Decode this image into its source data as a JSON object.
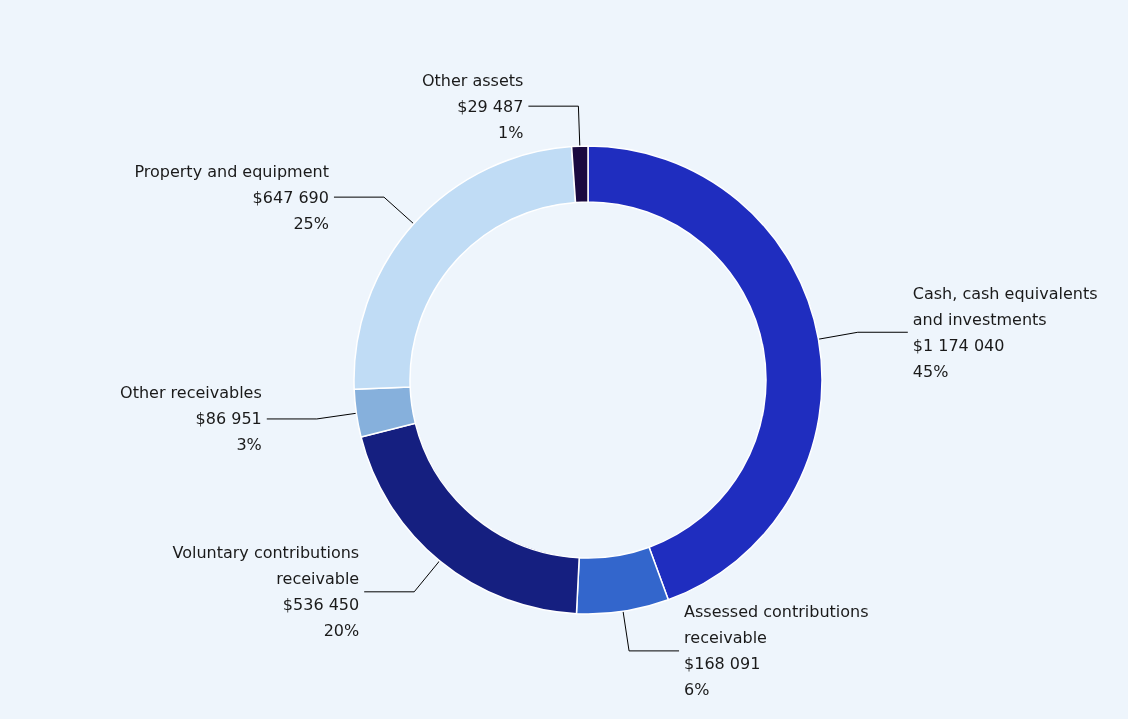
{
  "chart_data": {
    "type": "donut",
    "categories": [
      "Cash, cash equivalents\nand investments",
      "Assessed contributions\nreceivable",
      "Voluntary contributions\nreceivable",
      "Other receivables",
      "Property and equipment",
      "Other assets"
    ],
    "values": [
      1174040,
      168091,
      536450,
      86951,
      647690,
      29487
    ],
    "value_labels": [
      "$1 174 040\n45%",
      "$168 091\n6%",
      "$536 450\n20%",
      "$86 951\n3%",
      "$647 690\n25%",
      "$29 487\n1%"
    ],
    "colors": [
      "#1f2dbf",
      "#3366cc",
      "#151f80",
      "#86b0dc",
      "#c0dcf5",
      "#1a0a40"
    ],
    "legend": false
  }
}
